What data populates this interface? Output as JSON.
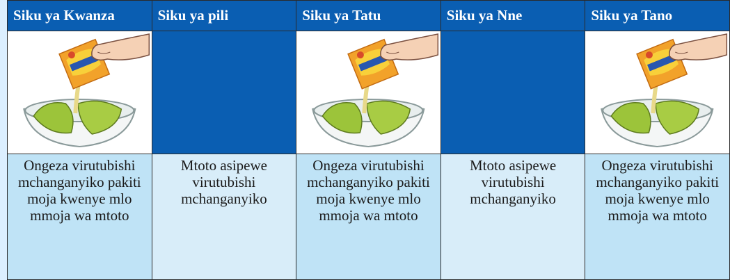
{
  "table": {
    "header": [
      "Siku ya Kwanza",
      "Siku ya pili",
      "Siku ya Tatu",
      "Siku ya Nne",
      "Siku ya Tano"
    ],
    "rows": [
      [
        "Ongeza virutubishi mchanganyiko pakiti moja kwenye mlo mmoja wa mtoto",
        "Mtoto asipewe virutubishi mchanganyiko",
        "Ongeza virutubishi mchanganyiko pakiti moja kwenye mlo mmoja wa mtoto",
        "Mtoto asipewe virutubishi mchanganyiko",
        "Ongeza virutubishi mchanganyiko pakiti moja kwenye mlo mmoja wa mtoto"
      ]
    ]
  }
}
